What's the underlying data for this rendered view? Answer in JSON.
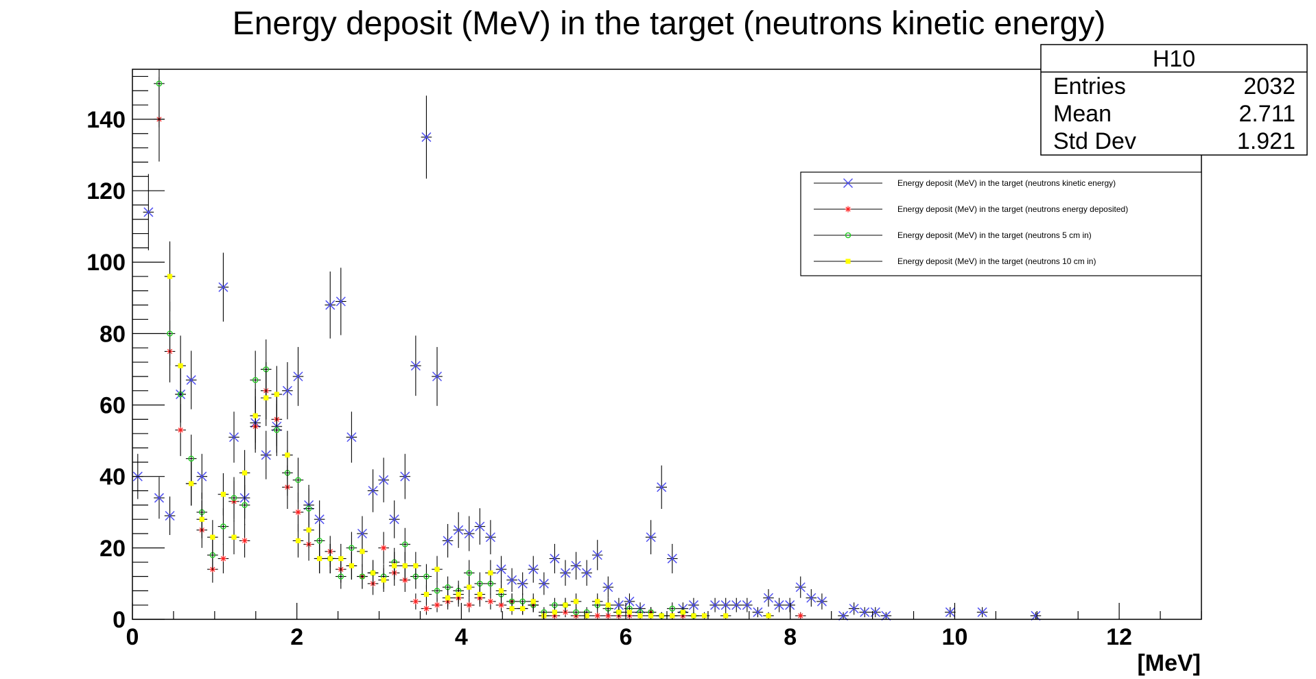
{
  "chart_data": {
    "type": "scatter",
    "title": "Energy deposit (MeV) in the target (neutrons kinetic energy)",
    "xlabel": "[MeV]",
    "ylabel": "",
    "xlim": [
      0,
      13
    ],
    "ylim": [
      0,
      154
    ],
    "x_ticks": [
      0,
      2,
      4,
      6,
      8,
      10,
      12
    ],
    "y_ticks": [
      0,
      20,
      40,
      60,
      80,
      100,
      120,
      140
    ],
    "bin_width": 0.13,
    "grid": false,
    "legend_position": "top-right",
    "stats": {
      "name": "H10",
      "rows": [
        {
          "label": "Entries",
          "value": "2032"
        },
        {
          "label": "Mean",
          "value": "2.711"
        },
        {
          "label": "Std Dev",
          "value": "1.921"
        }
      ]
    },
    "series": [
      {
        "name": "Energy deposit (MeV) in the target (neutrons kinetic energy)",
        "marker": "x",
        "color": "#5050f0",
        "points": [
          [
            0.065,
            40
          ],
          [
            0.195,
            114
          ],
          [
            0.325,
            34
          ],
          [
            0.455,
            29
          ],
          [
            0.585,
            63
          ],
          [
            0.715,
            67
          ],
          [
            0.845,
            40
          ],
          [
            1.105,
            93
          ],
          [
            1.235,
            51
          ],
          [
            1.365,
            34
          ],
          [
            1.495,
            55
          ],
          [
            1.625,
            46
          ],
          [
            1.755,
            54
          ],
          [
            1.885,
            64
          ],
          [
            2.015,
            68
          ],
          [
            2.145,
            32
          ],
          [
            2.275,
            28
          ],
          [
            2.405,
            88
          ],
          [
            2.535,
            89
          ],
          [
            2.665,
            51
          ],
          [
            2.795,
            24
          ],
          [
            2.925,
            36
          ],
          [
            3.055,
            39
          ],
          [
            3.185,
            28
          ],
          [
            3.315,
            40
          ],
          [
            3.445,
            71
          ],
          [
            3.575,
            135
          ],
          [
            3.705,
            68
          ],
          [
            3.835,
            22
          ],
          [
            3.965,
            25
          ],
          [
            4.095,
            24
          ],
          [
            4.225,
            26
          ],
          [
            4.355,
            23
          ],
          [
            4.485,
            14
          ],
          [
            4.615,
            11
          ],
          [
            4.745,
            10
          ],
          [
            4.875,
            14
          ],
          [
            5.005,
            10
          ],
          [
            5.135,
            17
          ],
          [
            5.265,
            13
          ],
          [
            5.395,
            15
          ],
          [
            5.525,
            13
          ],
          [
            5.655,
            18
          ],
          [
            5.785,
            9
          ],
          [
            5.915,
            4
          ],
          [
            6.045,
            5
          ],
          [
            6.175,
            3
          ],
          [
            6.305,
            23
          ],
          [
            6.435,
            37
          ],
          [
            6.565,
            17
          ],
          [
            6.695,
            3
          ],
          [
            6.825,
            4
          ],
          [
            7.085,
            4
          ],
          [
            7.215,
            4
          ],
          [
            7.345,
            4
          ],
          [
            7.475,
            4
          ],
          [
            7.605,
            2
          ],
          [
            7.735,
            6
          ],
          [
            7.865,
            4
          ],
          [
            7.995,
            4
          ],
          [
            8.125,
            9
          ],
          [
            8.255,
            6
          ],
          [
            8.385,
            5
          ],
          [
            8.645,
            1
          ],
          [
            8.775,
            3
          ],
          [
            8.905,
            2
          ],
          [
            9.035,
            2
          ],
          [
            9.165,
            1
          ],
          [
            9.945,
            2
          ],
          [
            10.335,
            2
          ],
          [
            10.985,
            1
          ]
        ]
      },
      {
        "name": "Energy deposit (MeV) in the target (neutrons energy deposited)",
        "marker": "star",
        "color": "#ff2020",
        "points": [
          [
            0.325,
            140
          ],
          [
            0.455,
            75
          ],
          [
            0.585,
            53
          ],
          [
            0.715,
            38
          ],
          [
            0.845,
            25
          ],
          [
            0.975,
            14
          ],
          [
            1.105,
            17
          ],
          [
            1.235,
            33
          ],
          [
            1.365,
            22
          ],
          [
            1.495,
            54
          ],
          [
            1.625,
            64
          ],
          [
            1.755,
            56
          ],
          [
            1.885,
            37
          ],
          [
            2.015,
            30
          ],
          [
            2.145,
            21
          ],
          [
            2.275,
            17
          ],
          [
            2.405,
            19
          ],
          [
            2.535,
            14
          ],
          [
            2.665,
            15
          ],
          [
            2.795,
            12
          ],
          [
            2.925,
            10
          ],
          [
            3.055,
            20
          ],
          [
            3.185,
            13
          ],
          [
            3.315,
            11
          ],
          [
            3.445,
            5
          ],
          [
            3.575,
            3
          ],
          [
            3.705,
            4
          ],
          [
            3.835,
            5
          ],
          [
            3.965,
            6
          ],
          [
            4.095,
            4
          ],
          [
            4.225,
            6
          ],
          [
            4.355,
            5
          ],
          [
            4.485,
            4
          ],
          [
            4.615,
            5
          ],
          [
            4.745,
            3
          ],
          [
            4.875,
            4
          ],
          [
            5.005,
            1
          ],
          [
            5.135,
            1
          ],
          [
            5.265,
            2
          ],
          [
            5.395,
            1
          ],
          [
            5.655,
            1
          ],
          [
            5.785,
            1
          ],
          [
            5.915,
            1
          ],
          [
            6.045,
            1
          ],
          [
            6.305,
            2
          ],
          [
            6.565,
            1
          ],
          [
            6.695,
            1
          ],
          [
            8.125,
            1
          ]
        ]
      },
      {
        "name": "Energy deposit (MeV) in the target (neutrons 5 cm in)",
        "marker": "circle",
        "color": "#22cc22",
        "points": [
          [
            0.325,
            150
          ],
          [
            0.455,
            80
          ],
          [
            0.585,
            63
          ],
          [
            0.715,
            45
          ],
          [
            0.845,
            30
          ],
          [
            0.975,
            18
          ],
          [
            1.105,
            26
          ],
          [
            1.235,
            34
          ],
          [
            1.365,
            32
          ],
          [
            1.495,
            67
          ],
          [
            1.625,
            70
          ],
          [
            1.755,
            53
          ],
          [
            1.885,
            41
          ],
          [
            2.015,
            39
          ],
          [
            2.145,
            31
          ],
          [
            2.275,
            22
          ],
          [
            2.405,
            17
          ],
          [
            2.535,
            12
          ],
          [
            2.665,
            20
          ],
          [
            2.795,
            12
          ],
          [
            2.925,
            13
          ],
          [
            3.055,
            12
          ],
          [
            3.185,
            16
          ],
          [
            3.315,
            21
          ],
          [
            3.445,
            12
          ],
          [
            3.575,
            12
          ],
          [
            3.705,
            8
          ],
          [
            3.835,
            9
          ],
          [
            3.965,
            8
          ],
          [
            4.095,
            13
          ],
          [
            4.225,
            10
          ],
          [
            4.355,
            10
          ],
          [
            4.485,
            7
          ],
          [
            4.615,
            5
          ],
          [
            4.745,
            5
          ],
          [
            4.875,
            4
          ],
          [
            5.005,
            2
          ],
          [
            5.135,
            4
          ],
          [
            5.265,
            4
          ],
          [
            5.395,
            2
          ],
          [
            5.525,
            2
          ],
          [
            5.655,
            4
          ],
          [
            5.785,
            3
          ],
          [
            5.915,
            2
          ],
          [
            6.045,
            3
          ],
          [
            6.175,
            2
          ],
          [
            6.305,
            2
          ],
          [
            6.435,
            1
          ],
          [
            6.565,
            3
          ],
          [
            6.695,
            2
          ],
          [
            6.825,
            1
          ]
        ]
      },
      {
        "name": "Energy deposit (MeV) in the target (neutrons 10 cm in)",
        "marker": "square",
        "color": "#ffff00",
        "points": [
          [
            0.455,
            96
          ],
          [
            0.585,
            71
          ],
          [
            0.715,
            38
          ],
          [
            0.845,
            28
          ],
          [
            0.975,
            23
          ],
          [
            1.105,
            35
          ],
          [
            1.235,
            23
          ],
          [
            1.365,
            41
          ],
          [
            1.495,
            57
          ],
          [
            1.625,
            62
          ],
          [
            1.755,
            63
          ],
          [
            1.885,
            46
          ],
          [
            2.015,
            22
          ],
          [
            2.145,
            25
          ],
          [
            2.275,
            17
          ],
          [
            2.405,
            17
          ],
          [
            2.535,
            17
          ],
          [
            2.665,
            15
          ],
          [
            2.795,
            19
          ],
          [
            2.925,
            13
          ],
          [
            3.055,
            11
          ],
          [
            3.185,
            15
          ],
          [
            3.315,
            15
          ],
          [
            3.445,
            15
          ],
          [
            3.575,
            7
          ],
          [
            3.705,
            14
          ],
          [
            3.835,
            6
          ],
          [
            3.965,
            7
          ],
          [
            4.095,
            9
          ],
          [
            4.225,
            7
          ],
          [
            4.355,
            13
          ],
          [
            4.485,
            8
          ],
          [
            4.615,
            3
          ],
          [
            4.745,
            3
          ],
          [
            4.875,
            5
          ],
          [
            5.005,
            1
          ],
          [
            5.135,
            2
          ],
          [
            5.265,
            4
          ],
          [
            5.395,
            5
          ],
          [
            5.525,
            1
          ],
          [
            5.655,
            5
          ],
          [
            5.785,
            4
          ],
          [
            5.915,
            2
          ],
          [
            6.045,
            2
          ],
          [
            6.175,
            1
          ],
          [
            6.305,
            1
          ],
          [
            6.435,
            1
          ],
          [
            6.565,
            1
          ],
          [
            6.695,
            2
          ],
          [
            6.825,
            1
          ],
          [
            6.955,
            1
          ],
          [
            7.215,
            1
          ],
          [
            7.735,
            1
          ]
        ]
      }
    ]
  }
}
